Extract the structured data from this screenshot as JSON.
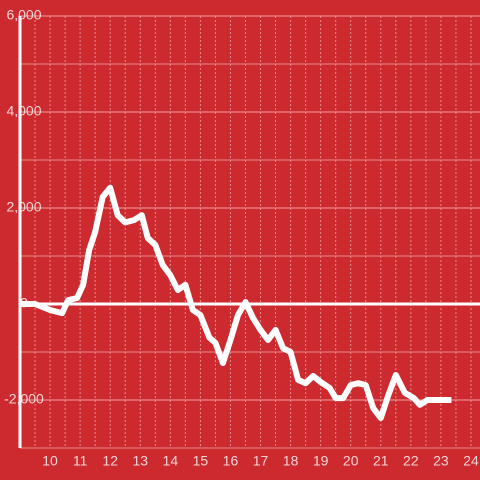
{
  "chart_data": {
    "type": "line",
    "x": [
      8.97,
      9.5,
      10,
      10.4,
      10.6,
      10.9,
      11.1,
      11.3,
      11.5,
      11.75,
      12,
      12.25,
      12.5,
      12.8,
      13.05,
      13.25,
      13.5,
      13.75,
      14,
      14.25,
      14.5,
      14.75,
      15,
      15.3,
      15.5,
      15.75,
      16,
      16.25,
      16.5,
      16.75,
      17,
      17.25,
      17.5,
      17.75,
      18,
      18.25,
      18.5,
      18.75,
      19,
      19.3,
      19.5,
      19.75,
      20,
      20.25,
      20.5,
      20.75,
      21,
      21.25,
      21.5,
      21.8,
      22.1,
      22.3,
      22.55,
      22.8,
      23.35
    ],
    "values": [
      0,
      0,
      -125,
      -190,
      80,
      125,
      400,
      1125,
      1500,
      2230,
      2420,
      1850,
      1700,
      1750,
      1850,
      1375,
      1230,
      810,
      600,
      290,
      400,
      -125,
      -230,
      -700,
      -810,
      -1230,
      -750,
      -230,
      40,
      -290,
      -540,
      -750,
      -540,
      -920,
      -1000,
      -1580,
      -1650,
      -1500,
      -1625,
      -1750,
      -1960,
      -1960,
      -1690,
      -1650,
      -1690,
      -2170,
      -2375,
      -1900,
      -1480,
      -1850,
      -1960,
      -2100,
      -2000,
      -2000,
      -2000
    ],
    "color": "#ffffff",
    "xlim": [
      9,
      24.3
    ],
    "xticks": [
      10,
      11,
      12,
      13,
      14,
      15,
      16,
      17,
      18,
      19,
      20,
      21,
      22,
      23,
      24
    ],
    "xminor": [
      9.5,
      10.5,
      11.5,
      12.5,
      13.5,
      14.5,
      15.5,
      16.5,
      17.5,
      18.5,
      19.5,
      20.5,
      21.5,
      22.5,
      23.5
    ],
    "ylim": [
      -3000,
      6000
    ],
    "yticks": [
      {
        "value": -2000,
        "label": "-2,000"
      },
      0,
      {
        "value": 2000,
        "label": "2,000"
      },
      {
        "value": 4000,
        "label": "4,000"
      },
      {
        "value": 6000,
        "label": "6,000"
      }
    ],
    "yminor": [
      -3000,
      -1000,
      1000,
      3000,
      5000
    ],
    "grid": true
  }
}
